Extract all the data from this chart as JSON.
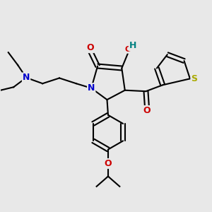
{
  "bg_color": "#e8e8e8",
  "bond_color": "#000000",
  "bond_width": 1.5,
  "figsize": [
    3.0,
    3.0
  ],
  "dpi": 100,
  "atoms": {
    "N": {
      "color": "#0000cc",
      "fontsize": 9,
      "fontweight": "bold"
    },
    "O": {
      "color": "#cc0000",
      "fontsize": 9,
      "fontweight": "bold"
    },
    "S": {
      "color": "#aaaa00",
      "fontsize": 9,
      "fontweight": "bold"
    },
    "H": {
      "color": "#008080",
      "fontsize": 9,
      "fontweight": "bold"
    }
  }
}
